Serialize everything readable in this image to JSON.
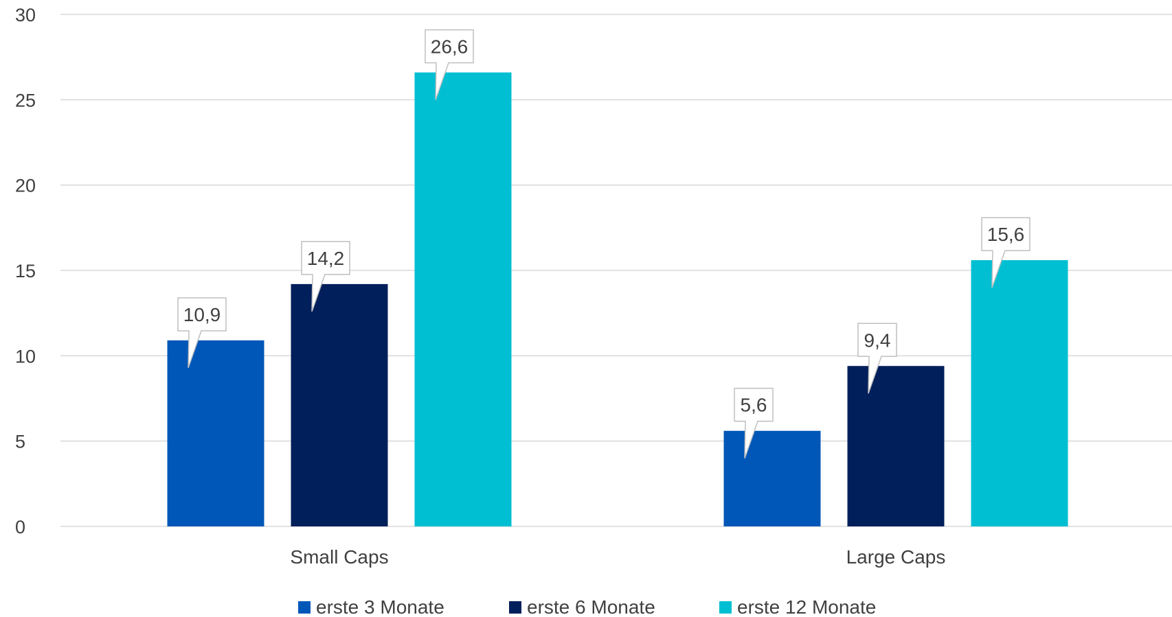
{
  "chart_data": {
    "type": "bar",
    "categories": [
      "Small Caps",
      "Large Caps"
    ],
    "series": [
      {
        "name": "erste 3 Monate",
        "values": [
          10.9,
          5.6
        ],
        "color": "#0057B8",
        "labels": [
          "10,9",
          "5,6"
        ]
      },
      {
        "name": "erste 6 Monate",
        "values": [
          14.2,
          9.4
        ],
        "color": "#001F5B",
        "labels": [
          "14,2",
          "9,4"
        ]
      },
      {
        "name": "erste 12 Monate",
        "values": [
          26.6,
          15.6
        ],
        "color": "#00BFD3",
        "labels": [
          "26,6",
          "15,6"
        ]
      }
    ],
    "ylim": [
      0,
      30
    ],
    "yticks": [
      "0",
      "5",
      "10",
      "15",
      "20",
      "25",
      "30"
    ],
    "ytick_values": [
      0,
      5,
      10,
      15,
      20,
      25,
      30
    ],
    "grid": true,
    "legend_position": "bottom",
    "colors": {
      "gridline": "#D9D9D9",
      "text": "#404040",
      "label_border": "#BFBFBF"
    }
  }
}
